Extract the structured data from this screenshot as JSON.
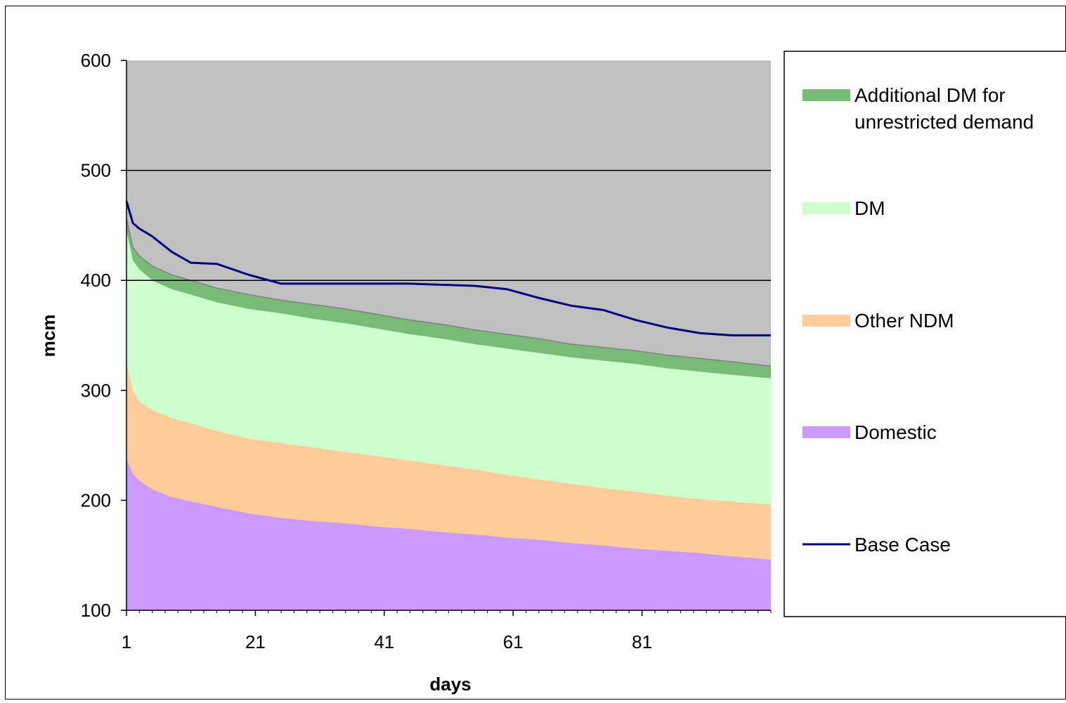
{
  "chart_data": {
    "type": "area",
    "xlabel": "days",
    "ylabel": "mcm",
    "xlim": [
      1,
      101
    ],
    "ylim": [
      100,
      600
    ],
    "x_ticks": [
      1,
      21,
      41,
      61,
      81
    ],
    "y_ticks": [
      100,
      200,
      300,
      400,
      500,
      600
    ],
    "grid": "horizontal major lines at 400 and 500",
    "legend": "right",
    "plot_background": "#c0c0c0",
    "x": [
      1,
      2,
      3,
      5,
      8,
      11,
      15,
      20,
      25,
      30,
      35,
      40,
      45,
      50,
      55,
      60,
      65,
      70,
      75,
      80,
      85,
      90,
      95,
      101
    ],
    "series": [
      {
        "name": "Domestic",
        "kind": "stacked_area",
        "color": "#cc99ff",
        "cumulative_top": [
          238,
          224,
          218,
          210,
          203,
          199,
          194,
          188,
          184,
          181,
          179,
          176,
          174,
          171,
          169,
          166,
          164,
          161,
          159,
          156,
          154,
          152,
          149,
          146
        ]
      },
      {
        "name": "Other NDM",
        "kind": "stacked_area",
        "color": "#ffcc99",
        "cumulative_top": [
          325,
          300,
          290,
          282,
          275,
          270,
          263,
          256,
          252,
          248,
          244,
          240,
          236,
          232,
          228,
          223,
          219,
          215,
          211,
          208,
          204,
          201,
          199,
          196
        ]
      },
      {
        "name": "DM",
        "kind": "stacked_area",
        "color": "#ccffcc",
        "cumulative_top": [
          445,
          418,
          410,
          400,
          392,
          387,
          380,
          374,
          370,
          365,
          361,
          356,
          351,
          347,
          342,
          338,
          334,
          330,
          327,
          324,
          320,
          317,
          314,
          311
        ]
      },
      {
        "name": "Additional DM for unrestricted demand",
        "kind": "stacked_area",
        "color": "#77bb77",
        "cumulative_top": [
          456,
          430,
          422,
          413,
          405,
          400,
          393,
          387,
          382,
          378,
          374,
          369,
          364,
          360,
          355,
          351,
          347,
          342,
          339,
          336,
          332,
          329,
          326,
          322
        ]
      },
      {
        "name": "Base Case",
        "kind": "line",
        "color": "#000080",
        "values": [
          472,
          452,
          447,
          440,
          426,
          416,
          415,
          405,
          397,
          397,
          397,
          397,
          397,
          396,
          395,
          392,
          384,
          377,
          373,
          364,
          357,
          352,
          350,
          350
        ]
      }
    ]
  }
}
